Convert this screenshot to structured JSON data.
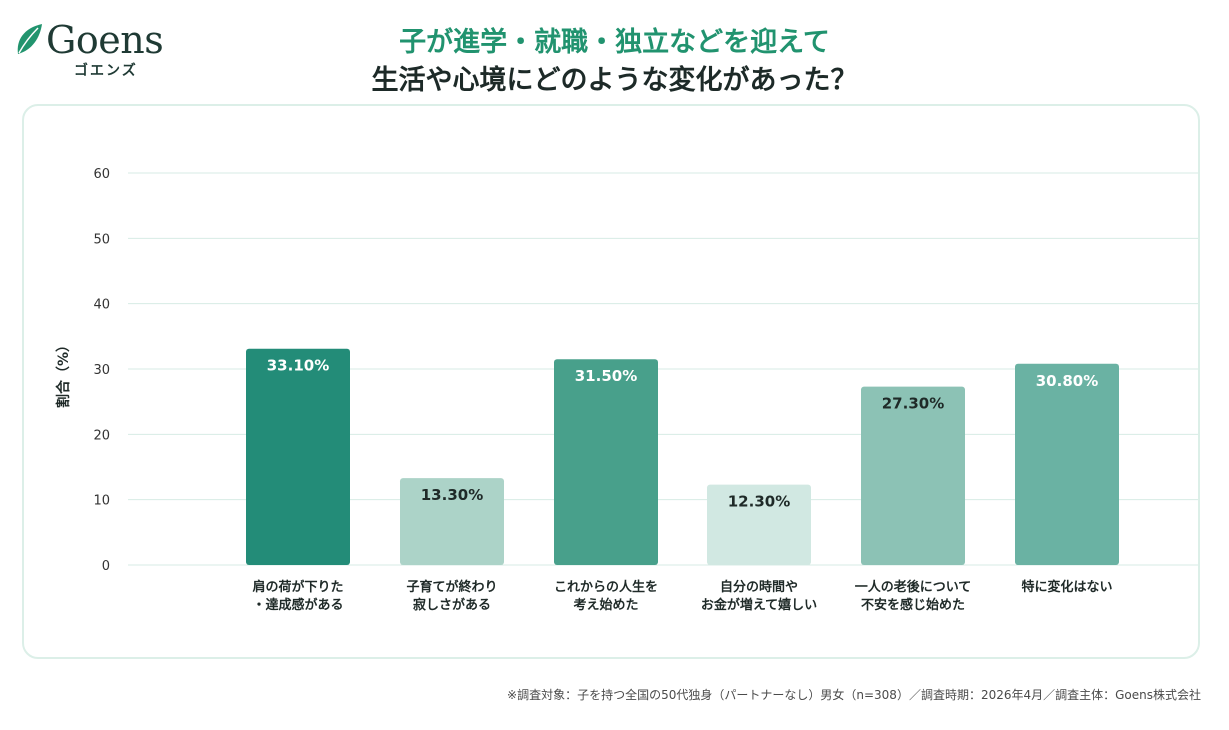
{
  "logo": {
    "word": "Goens",
    "kana": "ゴエンズ",
    "leaf_color": "#22946e"
  },
  "title": {
    "line1": "子が進学・就職・独立などを迎えて",
    "line2": "生活や心境にどのような変化があった？"
  },
  "colors": {
    "title_accent": "#21936f",
    "card_border": "#dcefe8",
    "grid": "#d7ebe4"
  },
  "chart_data": {
    "type": "bar",
    "ylabel": "割合（%）",
    "ylim": [
      0,
      60
    ],
    "yticks": [
      0,
      10,
      20,
      30,
      40,
      50,
      60
    ],
    "grid": true,
    "categories": [
      [
        "肩の荷が下りた",
        "・達成感がある"
      ],
      [
        "子育てが終わり",
        "寂しさがある"
      ],
      [
        "これからの人生を",
        "考え始めた"
      ],
      [
        "自分の時間や",
        "お金が増えて嬉しい"
      ],
      [
        "一人の老後について",
        "不安を感じ始めた"
      ],
      [
        "特に変化はない"
      ]
    ],
    "values": [
      33.1,
      13.3,
      31.5,
      12.3,
      27.3,
      30.8
    ],
    "value_labels": [
      "33.10%",
      "13.30%",
      "31.50%",
      "12.30%",
      "27.30%",
      "30.80%"
    ],
    "bar_colors": [
      "#238c78",
      "#acd3c8",
      "#48a08b",
      "#d1e8e2",
      "#8cc2b5",
      "#6ab2a3"
    ],
    "label_colors": [
      "#ffffff",
      "#1f2a28",
      "#ffffff",
      "#1f2a28",
      "#1f2a28",
      "#ffffff"
    ]
  },
  "footnote": "※調査対象：子を持つ全国の50代独身（パートナーなし）男女（n=308）／調査時期：2026年4月／調査主体：Goens株式会社"
}
